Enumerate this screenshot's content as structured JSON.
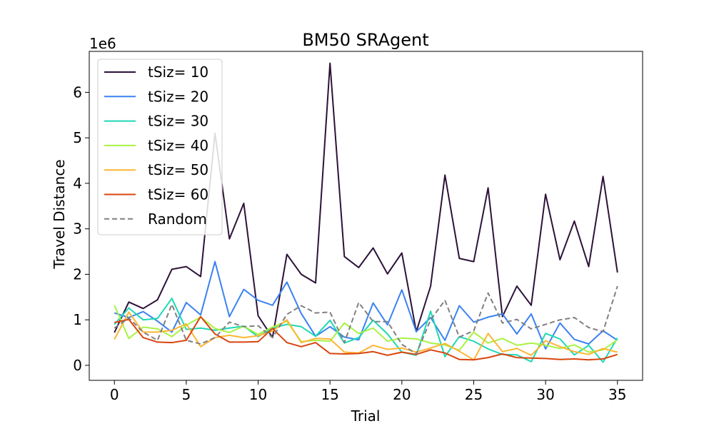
{
  "chart_data": {
    "type": "line",
    "title": "BM50  SRAgent",
    "xlabel": "Trial",
    "ylabel": "Travel Distance",
    "y_offset_label": "1e6",
    "xlim": [
      -1.75,
      36.75
    ],
    "ylim": [
      -0.33,
      6.9
    ],
    "x_ticks": [
      0,
      5,
      10,
      15,
      20,
      25,
      30,
      35
    ],
    "y_ticks": [
      0,
      1,
      2,
      3,
      4,
      5,
      6
    ],
    "grid": false,
    "legend_position": "upper-left",
    "x": [
      0,
      1,
      2,
      3,
      4,
      5,
      6,
      7,
      8,
      9,
      10,
      11,
      12,
      13,
      14,
      15,
      16,
      17,
      18,
      19,
      20,
      21,
      22,
      23,
      24,
      25,
      26,
      27,
      28,
      29,
      30,
      31,
      32,
      33,
      34,
      35
    ],
    "series": [
      {
        "name": "tSiz= 10",
        "color": "#2d1239",
        "dash": "solid",
        "values": [
          0.72,
          1.39,
          1.25,
          1.44,
          2.11,
          2.17,
          1.95,
          5.1,
          2.78,
          3.56,
          1.09,
          0.61,
          2.44,
          2.0,
          1.81,
          6.64,
          2.39,
          2.15,
          2.58,
          2.01,
          2.47,
          0.74,
          1.74,
          4.18,
          2.35,
          2.28,
          3.9,
          1.07,
          1.74,
          1.32,
          3.76,
          2.32,
          3.17,
          2.17,
          4.15,
          2.04
        ]
      },
      {
        "name": "tSiz= 20",
        "color": "#3b82f0",
        "dash": "solid",
        "values": [
          1.15,
          1.05,
          1.18,
          0.97,
          0.73,
          1.38,
          1.11,
          2.28,
          1.07,
          1.67,
          1.43,
          1.32,
          1.83,
          1.14,
          0.64,
          0.85,
          0.62,
          0.56,
          1.37,
          0.89,
          1.66,
          0.74,
          1.05,
          0.55,
          1.31,
          0.95,
          1.06,
          1.13,
          0.69,
          1.13,
          0.36,
          0.93,
          0.57,
          0.47,
          0.76,
          0.55
        ]
      },
      {
        "name": "tSiz= 30",
        "color": "#1fd8b5",
        "dash": "solid",
        "values": [
          0.9,
          1.26,
          1.0,
          1.03,
          1.47,
          0.79,
          0.82,
          0.77,
          0.82,
          0.86,
          0.63,
          0.82,
          0.9,
          0.85,
          0.64,
          0.99,
          0.49,
          0.61,
          0.99,
          0.69,
          0.29,
          0.22,
          1.19,
          0.19,
          0.63,
          0.53,
          0.36,
          0.24,
          0.23,
          0.08,
          0.7,
          0.58,
          0.23,
          0.44,
          0.07,
          0.6
        ]
      },
      {
        "name": "tSiz= 40",
        "color": "#a8f244",
        "dash": "solid",
        "values": [
          1.32,
          0.59,
          0.84,
          0.8,
          0.63,
          0.88,
          1.06,
          0.81,
          0.72,
          0.86,
          0.68,
          0.84,
          0.97,
          0.52,
          0.55,
          0.53,
          0.93,
          0.7,
          0.82,
          0.53,
          0.6,
          0.58,
          0.49,
          0.45,
          0.33,
          0.73,
          0.49,
          0.59,
          0.44,
          0.49,
          0.44,
          0.37,
          0.45,
          0.29,
          0.34,
          0.56
        ]
      },
      {
        "name": "tSiz= 50",
        "color": "#fcb632",
        "dash": "solid",
        "values": [
          0.57,
          1.17,
          0.73,
          0.73,
          0.77,
          0.91,
          0.41,
          0.61,
          0.66,
          0.61,
          0.65,
          0.75,
          1.0,
          0.5,
          0.59,
          0.58,
          0.29,
          0.27,
          0.44,
          0.35,
          0.38,
          0.29,
          0.38,
          0.48,
          0.31,
          0.12,
          0.7,
          0.3,
          0.37,
          0.22,
          0.54,
          0.41,
          0.3,
          0.24,
          0.37,
          0.29
        ]
      },
      {
        "name": "tSiz= 60",
        "color": "#d9450e",
        "dash": "solid",
        "values": [
          0.94,
          1.01,
          0.61,
          0.51,
          0.5,
          0.55,
          1.07,
          0.69,
          0.51,
          0.51,
          0.52,
          0.81,
          0.5,
          0.41,
          0.5,
          0.26,
          0.25,
          0.26,
          0.3,
          0.22,
          0.29,
          0.24,
          0.34,
          0.27,
          0.13,
          0.12,
          0.17,
          0.25,
          0.17,
          0.16,
          0.15,
          0.13,
          0.14,
          0.12,
          0.14,
          0.24
        ]
      },
      {
        "name": "Random",
        "color": "#808080",
        "dash": "dashed",
        "values": [
          0.82,
          1.04,
          0.73,
          0.55,
          1.34,
          0.55,
          0.47,
          0.61,
          0.95,
          0.85,
          0.87,
          0.61,
          1.12,
          1.31,
          1.15,
          1.17,
          0.5,
          1.38,
          0.96,
          0.96,
          0.46,
          0.25,
          1.0,
          1.43,
          0.62,
          0.76,
          1.59,
          0.93,
          1.01,
          0.8,
          0.9,
          1.0,
          1.05,
          0.83,
          0.74,
          1.74
        ]
      }
    ]
  }
}
